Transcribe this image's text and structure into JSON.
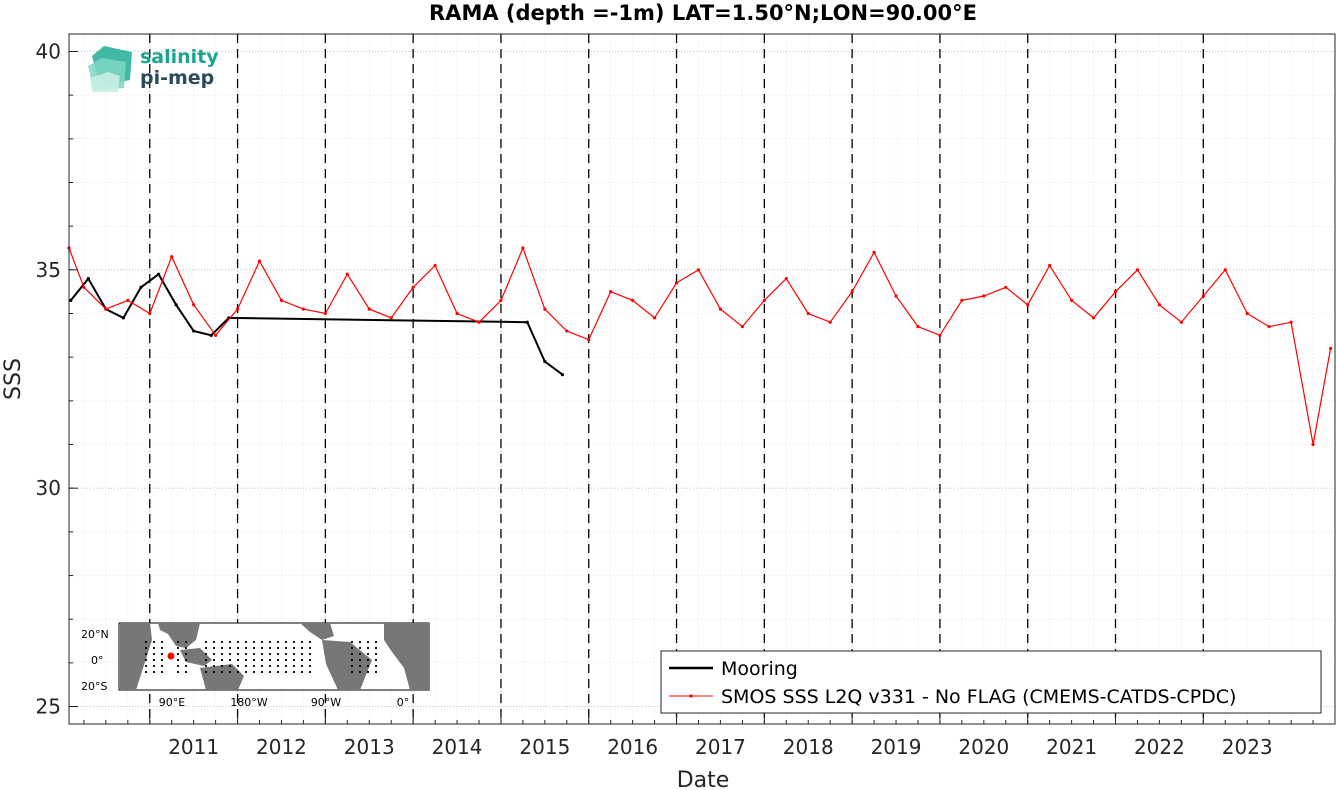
{
  "chart_data": {
    "type": "line",
    "title": "RAMA (depth =-1m) LAT=1.50°N;LON=90.00°E",
    "xlabel": "Date",
    "ylabel": "SSS",
    "xlim": [
      2010.08,
      2024.5
    ],
    "ylim": [
      24.6,
      40.4
    ],
    "yticks": [
      25,
      30,
      35,
      40
    ],
    "xticks": [
      2011,
      2012,
      2013,
      2014,
      2015,
      2016,
      2017,
      2018,
      2019,
      2020,
      2021,
      2022,
      2023
    ],
    "xtick_labels": [
      "2011",
      "2012",
      "2013",
      "2014",
      "2015",
      "2016",
      "2017",
      "2018",
      "2019",
      "2020",
      "2021",
      "2022",
      "2023"
    ],
    "year_boundaries": [
      2011,
      2012,
      2013,
      2014,
      2015,
      2016,
      2017,
      2018,
      2019,
      2020,
      2021,
      2022,
      2023
    ],
    "grid": true,
    "legend_position": "bottom-right",
    "series": [
      {
        "name": "Mooring",
        "color": "#000000",
        "x": [
          2010.1,
          2010.3,
          2010.5,
          2010.7,
          2010.9,
          2011.1,
          2011.3,
          2011.5,
          2011.7,
          2011.9,
          2015.3,
          2015.5,
          2015.7
        ],
        "y": [
          34.3,
          34.8,
          34.1,
          33.9,
          34.6,
          34.9,
          34.2,
          33.6,
          33.5,
          33.9,
          33.8,
          32.9,
          32.6
        ]
      },
      {
        "name": "SMOS SSS L2Q v331 - No FLAG  (CMEMS-CATDS-CPDC)",
        "color": "#ff0000",
        "x": [
          2010.08,
          2010.25,
          2010.5,
          2010.75,
          2011.0,
          2011.25,
          2011.5,
          2011.75,
          2012.0,
          2012.25,
          2012.5,
          2012.75,
          2013.0,
          2013.25,
          2013.5,
          2013.75,
          2014.0,
          2014.25,
          2014.5,
          2014.75,
          2015.0,
          2015.25,
          2015.5,
          2015.75,
          2016.0,
          2016.25,
          2016.5,
          2016.75,
          2017.0,
          2017.25,
          2017.5,
          2017.75,
          2018.0,
          2018.25,
          2018.5,
          2018.75,
          2019.0,
          2019.25,
          2019.5,
          2019.75,
          2020.0,
          2020.25,
          2020.5,
          2020.75,
          2021.0,
          2021.25,
          2021.5,
          2021.75,
          2022.0,
          2022.25,
          2022.5,
          2022.75,
          2023.0,
          2023.25,
          2023.5,
          2023.75,
          2024.0,
          2024.25,
          2024.45
        ],
        "y": [
          35.5,
          34.6,
          34.1,
          34.3,
          34.0,
          35.3,
          34.2,
          33.5,
          34.1,
          35.2,
          34.3,
          34.1,
          34.0,
          34.9,
          34.1,
          33.9,
          34.6,
          35.1,
          34.0,
          33.8,
          34.3,
          35.5,
          34.1,
          33.6,
          33.4,
          34.5,
          34.3,
          33.9,
          34.7,
          35.0,
          34.1,
          33.7,
          34.3,
          34.8,
          34.0,
          33.8,
          34.5,
          35.4,
          34.4,
          33.7,
          33.5,
          34.3,
          34.4,
          34.6,
          34.2,
          35.1,
          34.3,
          33.9,
          34.5,
          35.0,
          34.2,
          33.8,
          34.4,
          35.0,
          34.0,
          33.7,
          33.8,
          31.0,
          33.2
        ]
      }
    ]
  },
  "logo": {
    "line1": "salinity",
    "line2": "pi-mep",
    "colors": [
      "#1aa68e",
      "#2b4a5c"
    ]
  },
  "inset_map": {
    "lat_labels": [
      "20°N",
      "0°",
      "20°S"
    ],
    "lon_labels": [
      "90°E",
      "180°W",
      "90°W",
      "0°"
    ],
    "marker_color": "#ff0000"
  }
}
